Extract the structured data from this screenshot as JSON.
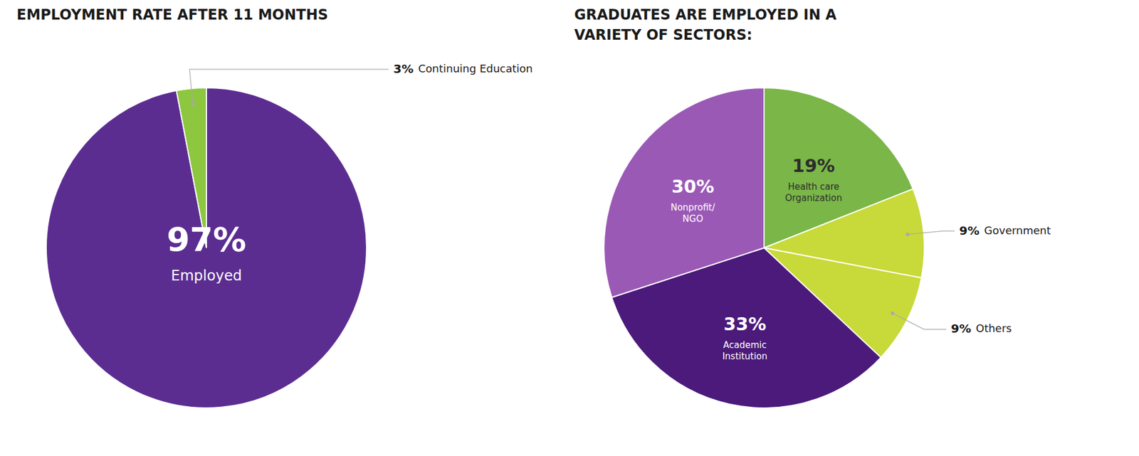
{
  "chart_data": [
    {
      "type": "pie",
      "title": "EMPLOYMENT RATE AFTER 11 MONTHS",
      "categories": [
        "Employed",
        "Continuing Education"
      ],
      "values": [
        97,
        3
      ],
      "value_labels": [
        "97%",
        "3%"
      ],
      "colors": [
        "#5c2d91",
        "#8dc63f"
      ],
      "data_labels": true
    },
    {
      "type": "pie",
      "title": "GRADUATES ARE EMPLOYED IN A\nVARIETY OF SECTORS:",
      "categories": [
        "Health care\nOrganization",
        "Government",
        "Others",
        "Academic\nInstitution",
        "Nonprofit/\nNGO"
      ],
      "values": [
        19,
        9,
        9,
        33,
        30
      ],
      "value_labels": [
        "19%",
        "9%",
        "9%",
        "33%",
        "30%"
      ],
      "colors": [
        "#7ab648",
        "#c8d93a",
        "#c8d93a",
        "#4b1a7a",
        "#9b59b6"
      ],
      "data_labels": true
    }
  ]
}
